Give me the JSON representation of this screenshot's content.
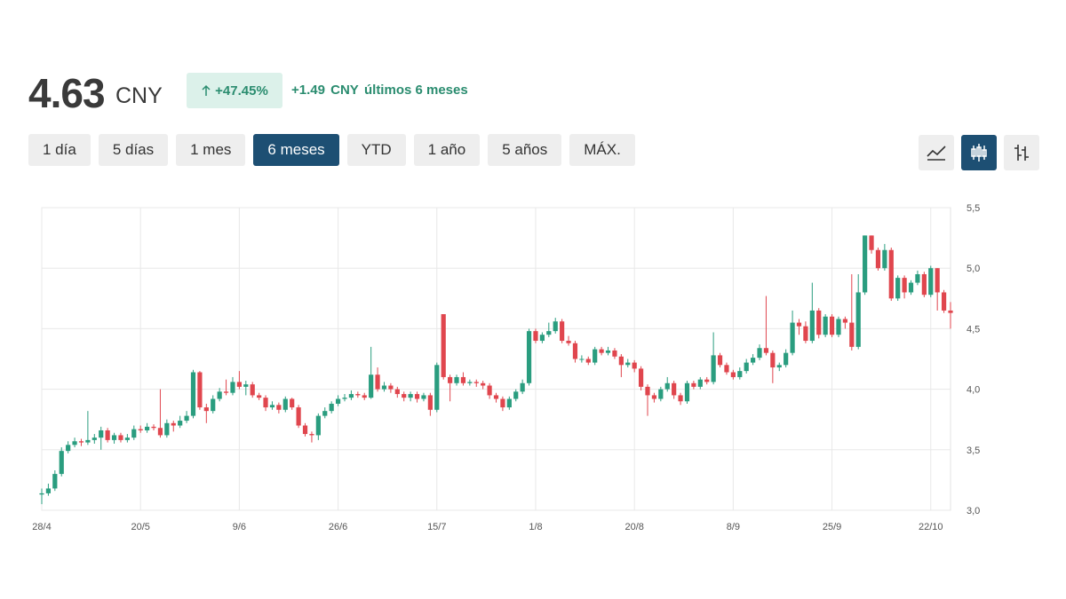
{
  "quote": {
    "price": "4.63",
    "currency": "CNY",
    "change_pct": "+47.45%",
    "change_abs": "+1.49",
    "change_unit": "CNY",
    "period": "últimos 6 meses"
  },
  "ranges": [
    "1 día",
    "5 días",
    "1 mes",
    "6 meses",
    "YTD",
    "1 año",
    "5 años",
    "MÁX."
  ],
  "selected_range": "6 meses",
  "chart_data": {
    "type": "candlestick",
    "categories": [
      "28/4",
      null,
      null,
      null,
      null,
      null,
      null,
      null,
      null,
      null,
      null,
      null,
      null,
      null,
      null,
      "20/5",
      null,
      null,
      null,
      null,
      null,
      null,
      null,
      null,
      null,
      null,
      null,
      null,
      null,
      null,
      "9/6",
      null,
      null,
      null,
      null,
      null,
      null,
      null,
      null,
      null,
      null,
      null,
      null,
      null,
      null,
      "26/6",
      null,
      null,
      null,
      null,
      null,
      null,
      null,
      null,
      null,
      null,
      null,
      null,
      null,
      null,
      "15/7",
      null,
      null,
      null,
      null,
      null,
      null,
      null,
      null,
      null,
      null,
      null,
      null,
      null,
      null,
      "1/8",
      null,
      null,
      null,
      null,
      null,
      null,
      null,
      null,
      null,
      null,
      null,
      null,
      null,
      null,
      "20/8",
      null,
      null,
      null,
      null,
      null,
      null,
      null,
      null,
      null,
      null,
      null,
      null,
      null,
      null,
      "8/9",
      null,
      null,
      null,
      null,
      null,
      null,
      null,
      null,
      null,
      null,
      null,
      null,
      null,
      null,
      "25/9",
      null,
      null,
      null,
      null,
      null,
      null,
      null,
      null,
      null,
      null,
      null,
      null,
      null,
      null,
      "22/10",
      null,
      null,
      null
    ],
    "open": [
      3.13,
      3.14,
      3.18,
      3.3,
      3.49,
      3.54,
      3.57,
      3.56,
      3.58,
      3.6,
      3.66,
      3.58,
      3.62,
      3.58,
      3.6,
      3.67,
      3.66,
      3.69,
      3.68,
      3.62,
      3.72,
      3.7,
      3.74,
      3.78,
      4.14,
      3.85,
      3.82,
      3.92,
      3.98,
      3.97,
      4.06,
      4.02,
      4.04,
      3.95,
      3.93,
      3.85,
      3.87,
      3.83,
      3.92,
      3.85,
      3.7,
      3.63,
      3.62,
      3.78,
      3.82,
      3.88,
      3.92,
      3.93,
      3.96,
      3.95,
      3.93,
      4.12,
      4.0,
      4.03,
      4.0,
      3.96,
      3.93,
      3.96,
      3.92,
      3.95,
      3.83,
      4.62,
      4.1,
      4.05,
      4.1,
      4.05,
      4.06,
      4.05,
      4.03,
      3.95,
      3.92,
      3.85,
      3.92,
      3.98,
      4.05,
      4.48,
      4.4,
      4.45,
      4.48,
      4.56,
      4.4,
      4.38,
      4.25,
      4.25,
      4.22,
      4.33,
      4.3,
      4.32,
      4.27,
      4.2,
      4.22,
      4.17,
      4.02,
      3.95,
      3.92,
      4.0,
      4.05,
      3.95,
      3.9,
      4.05,
      4.02,
      4.08,
      4.06,
      4.28,
      4.2,
      4.14,
      4.1,
      4.15,
      4.22,
      4.26,
      4.34,
      4.3,
      4.18,
      4.2,
      4.3,
      4.55,
      4.52,
      4.4,
      4.65,
      4.45,
      4.6,
      4.45,
      4.58,
      4.55,
      4.35,
      4.8,
      5.27,
      5.15,
      5.0,
      5.15,
      4.75,
      4.92,
      4.8,
      4.88,
      4.95,
      4.78,
      5.0,
      4.8,
      4.65
    ],
    "high": [
      3.18,
      3.22,
      3.33,
      3.52,
      3.57,
      3.6,
      3.59,
      3.82,
      3.63,
      3.69,
      3.68,
      3.64,
      3.64,
      3.63,
      3.7,
      3.7,
      3.72,
      3.71,
      4.0,
      3.75,
      3.74,
      3.78,
      3.82,
      4.16,
      4.15,
      3.88,
      3.95,
      4.01,
      4.08,
      4.1,
      4.15,
      4.07,
      4.06,
      3.97,
      3.95,
      3.9,
      3.89,
      3.94,
      3.93,
      3.87,
      3.72,
      3.65,
      3.8,
      3.85,
      3.9,
      3.95,
      3.96,
      3.99,
      3.98,
      3.97,
      4.35,
      4.18,
      4.06,
      4.05,
      4.02,
      3.98,
      3.98,
      3.98,
      3.97,
      3.97,
      4.22,
      4.62,
      4.12,
      4.12,
      4.14,
      4.08,
      4.08,
      4.07,
      4.05,
      3.97,
      3.94,
      3.94,
      4.0,
      4.08,
      4.5,
      4.5,
      4.47,
      4.55,
      4.59,
      4.58,
      4.44,
      4.4,
      4.28,
      4.27,
      4.35,
      4.35,
      4.35,
      4.34,
      4.29,
      4.25,
      4.24,
      4.19,
      4.04,
      3.97,
      4.02,
      4.1,
      4.07,
      3.97,
      4.07,
      4.07,
      4.1,
      4.1,
      4.47,
      4.3,
      4.22,
      4.16,
      4.18,
      4.25,
      4.29,
      4.37,
      4.77,
      4.32,
      4.22,
      4.33,
      4.65,
      4.58,
      4.56,
      4.88,
      4.67,
      4.62,
      4.62,
      4.6,
      4.6,
      4.95,
      4.95,
      5.27,
      5.27,
      5.17,
      5.2,
      5.17,
      4.94,
      4.94,
      4.9,
      4.98,
      4.97,
      5.02,
      5.0,
      4.82,
      4.72
    ],
    "low": [
      3.05,
      3.12,
      3.16,
      3.28,
      3.47,
      3.52,
      3.53,
      3.54,
      3.55,
      3.5,
      3.56,
      3.55,
      3.56,
      3.56,
      3.58,
      3.64,
      3.64,
      3.66,
      3.6,
      3.6,
      3.65,
      3.68,
      3.72,
      3.76,
      3.83,
      3.72,
      3.8,
      3.9,
      3.95,
      3.95,
      4.0,
      3.95,
      3.93,
      3.91,
      3.82,
      3.83,
      3.8,
      3.81,
      3.83,
      3.68,
      3.61,
      3.56,
      3.58,
      3.76,
      3.8,
      3.86,
      3.9,
      3.91,
      3.93,
      3.91,
      3.92,
      3.98,
      3.98,
      3.97,
      3.93,
      3.9,
      3.9,
      3.89,
      3.9,
      3.78,
      3.81,
      4.08,
      3.9,
      4.03,
      4.03,
      4.03,
      4.02,
      4.0,
      3.92,
      3.89,
      3.82,
      3.83,
      3.9,
      3.96,
      4.03,
      4.38,
      4.38,
      4.43,
      4.46,
      4.38,
      4.36,
      4.22,
      4.22,
      4.2,
      4.2,
      4.28,
      4.28,
      4.25,
      4.1,
      4.18,
      4.14,
      3.99,
      3.78,
      3.89,
      3.9,
      3.98,
      3.92,
      3.87,
      3.88,
      4.0,
      4.0,
      4.04,
      4.04,
      4.18,
      4.12,
      4.08,
      4.08,
      4.13,
      4.2,
      4.24,
      4.28,
      4.05,
      4.15,
      4.18,
      4.28,
      4.45,
      4.38,
      4.38,
      4.42,
      4.43,
      4.43,
      4.43,
      4.5,
      4.32,
      4.33,
      4.78,
      5.12,
      4.98,
      4.98,
      4.73,
      4.73,
      4.75,
      4.78,
      4.86,
      4.76,
      4.76,
      4.65,
      4.63,
      4.5
    ],
    "close": [
      3.14,
      3.18,
      3.3,
      3.49,
      3.54,
      3.57,
      3.56,
      3.58,
      3.6,
      3.66,
      3.58,
      3.62,
      3.58,
      3.6,
      3.67,
      3.66,
      3.69,
      3.68,
      3.62,
      3.72,
      3.7,
      3.74,
      3.78,
      4.14,
      3.85,
      3.82,
      3.92,
      3.98,
      3.97,
      4.06,
      4.02,
      4.04,
      3.95,
      3.93,
      3.85,
      3.87,
      3.83,
      3.92,
      3.85,
      3.7,
      3.63,
      3.62,
      3.78,
      3.82,
      3.88,
      3.92,
      3.93,
      3.96,
      3.95,
      3.93,
      4.12,
      4.0,
      4.03,
      4.0,
      3.96,
      3.93,
      3.96,
      3.92,
      3.95,
      3.83,
      4.2,
      4.1,
      4.05,
      4.1,
      4.05,
      4.06,
      4.05,
      4.03,
      3.95,
      3.92,
      3.85,
      3.92,
      3.98,
      4.05,
      4.48,
      4.4,
      4.45,
      4.48,
      4.56,
      4.4,
      4.38,
      4.25,
      4.25,
      4.22,
      4.33,
      4.3,
      4.32,
      4.27,
      4.2,
      4.22,
      4.17,
      4.02,
      3.95,
      3.92,
      4.0,
      4.05,
      3.95,
      3.9,
      4.05,
      4.02,
      4.08,
      4.06,
      4.28,
      4.2,
      4.14,
      4.1,
      4.15,
      4.22,
      4.26,
      4.34,
      4.3,
      4.18,
      4.2,
      4.3,
      4.55,
      4.52,
      4.4,
      4.65,
      4.45,
      4.6,
      4.45,
      4.58,
      4.55,
      4.35,
      4.8,
      5.27,
      5.15,
      5.0,
      5.15,
      4.75,
      4.92,
      4.8,
      4.88,
      4.95,
      4.78,
      5.0,
      4.8,
      4.65,
      4.63
    ],
    "up_color": "#2a9d7f",
    "down_color": "#e0464e",
    "ylim": [
      3.0,
      5.5
    ],
    "yticks": [
      {
        "value": 3.0,
        "label": "3,0"
      },
      {
        "value": 3.5,
        "label": "3,5"
      },
      {
        "value": 4.0,
        "label": "4,0"
      },
      {
        "value": 4.5,
        "label": "4,5"
      },
      {
        "value": 5.0,
        "label": "5,0"
      },
      {
        "value": 5.5,
        "label": "5,5"
      }
    ],
    "grid": true
  }
}
